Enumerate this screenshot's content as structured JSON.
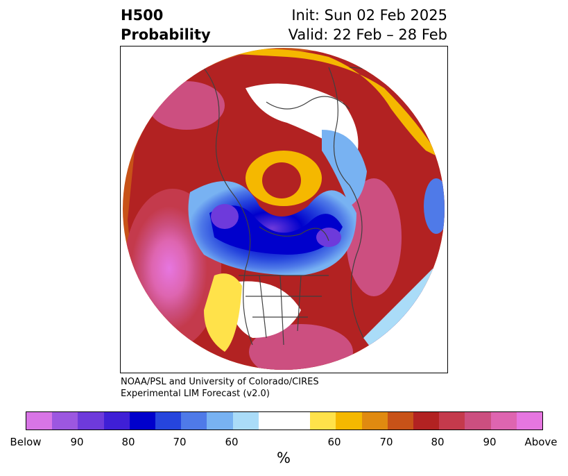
{
  "title": {
    "left_line1": "H500",
    "left_line2": "Probability",
    "right_line1": "Init: Sun 02 Feb 2025",
    "right_line2": "Valid: 22 Feb – 28 Feb"
  },
  "credit": {
    "line1": "NOAA/PSL and University of Colorado/CIRES",
    "line2": "Experimental LIM Forecast (v2.0)"
  },
  "colorbar": {
    "colors": [
      "#d875e6",
      "#9c57e0",
      "#6e3adb",
      "#3f1fd6",
      "#0000cc",
      "#2645dd",
      "#4f7ae8",
      "#78b2f2",
      "#aadcf8",
      "#ffffff",
      "#ffffff",
      "#ffe24a",
      "#f5b800",
      "#e08a10",
      "#c85218",
      "#b22222",
      "#c43a4c",
      "#cc4f80",
      "#de65b0",
      "#e676e0"
    ],
    "tick_labels": [
      "Below",
      "90",
      "80",
      "70",
      "60",
      "60",
      "70",
      "80",
      "90",
      "Above"
    ],
    "unit_label": "%"
  },
  "map": {
    "type": "polar-stereographic probability map",
    "colors": {
      "strong_below": "#d875e6",
      "below": "#0000cc",
      "weak_below": "#aadcf8",
      "weak_above": "#ffe24a",
      "above": "#b22222",
      "strong_above": "#e676e0",
      "coastline": "#404040"
    }
  }
}
